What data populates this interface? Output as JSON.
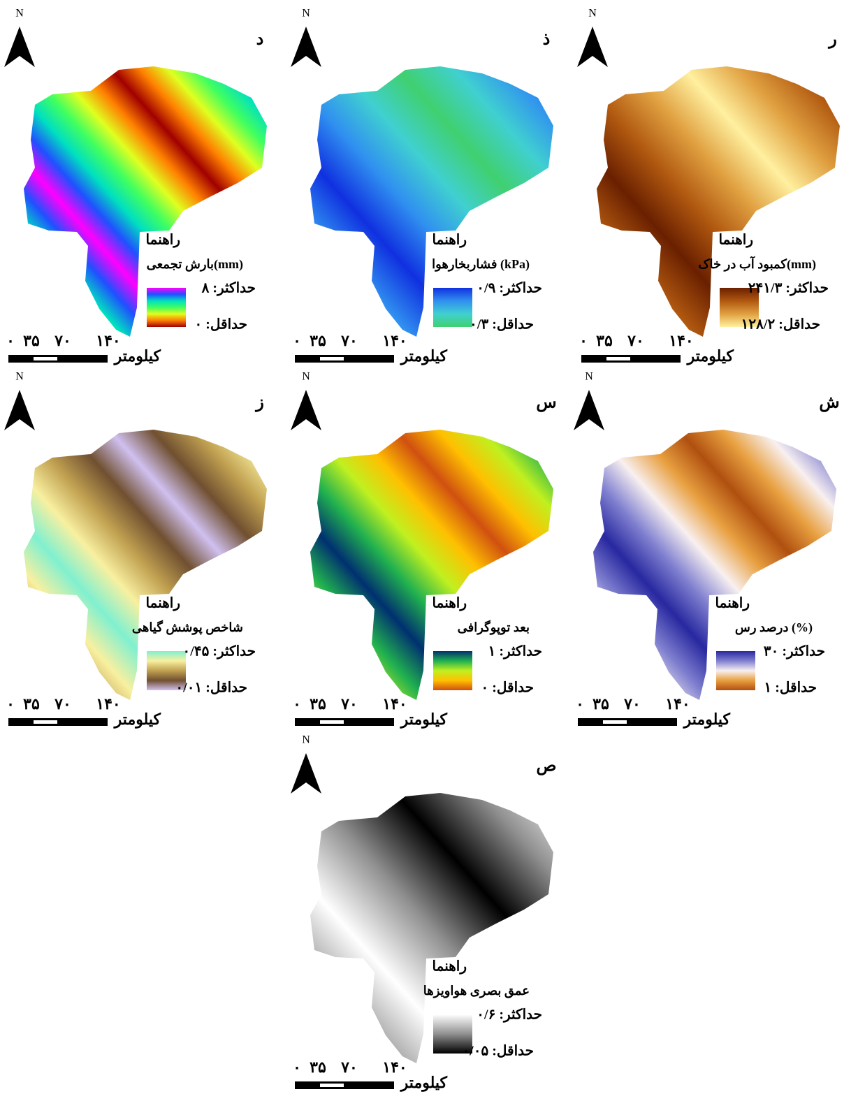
{
  "north": "N",
  "legend_title": "راهنما",
  "scale": {
    "ticks": [
      "۰",
      "۳۵",
      "۷۰",
      "۱۴۰"
    ],
    "unit": "کیلومتر"
  },
  "panels": [
    {
      "letter": "د",
      "variable": "بارش تجمعی(mm)",
      "max": "حداکثر: ۸",
      "min": "حداقل: ۰",
      "colors": [
        "#ff00ff",
        "#2050ff",
        "#00e0c0",
        "#40ff60",
        "#e0ff20",
        "#ff8000",
        "#a00000"
      ]
    },
    {
      "letter": "ذ",
      "variable": "فشاربخارهوا (kPa)",
      "max": "حداکثر: ۰/۹",
      "min": "حداقل: ۰/۳",
      "colors": [
        "#1030e0",
        "#3090f0",
        "#40d0d0",
        "#40d070"
      ]
    },
    {
      "letter": "ر",
      "variable": "کمبود آب در خاک(mm)",
      "max": "حداکثر: ۲۴۱/۳",
      "min": "حداقل: ۱۲۸/۲",
      "colors": [
        "#6a2000",
        "#b05810",
        "#e0a040",
        "#fff0a0"
      ]
    },
    {
      "letter": "ز",
      "variable": "شاخص پوشش گیاهی",
      "max": "حداکثر: ۰/۴۵",
      "min": "حداقل: ۰/۰۱",
      "colors": [
        "#80f0d0",
        "#f8f0a0",
        "#c0a050",
        "#705030",
        "#d0c0f0"
      ]
    },
    {
      "letter": "س",
      "variable": "بعد توپوگرافی",
      "max": "حداکثر: ۱",
      "min": "حداقل: ۰",
      "colors": [
        "#003070",
        "#20b050",
        "#c0f020",
        "#ffc000",
        "#d05010"
      ]
    },
    {
      "letter": "ش",
      "variable": "درصد رس (%)",
      "max": "حداکثر: ۳۰",
      "min": "حداقل: ۱",
      "colors": [
        "#2828a0",
        "#8080d0",
        "#f8f0f0",
        "#e8a040",
        "#b05010"
      ]
    },
    {
      "letter": "ص",
      "variable": "عمق بصری هواویزها",
      "max": "حداکثر: ۰/۶",
      "min": "حداقل: ۰/۰۵",
      "colors": [
        "#ffffff",
        "#909090",
        "#000000"
      ]
    }
  ]
}
